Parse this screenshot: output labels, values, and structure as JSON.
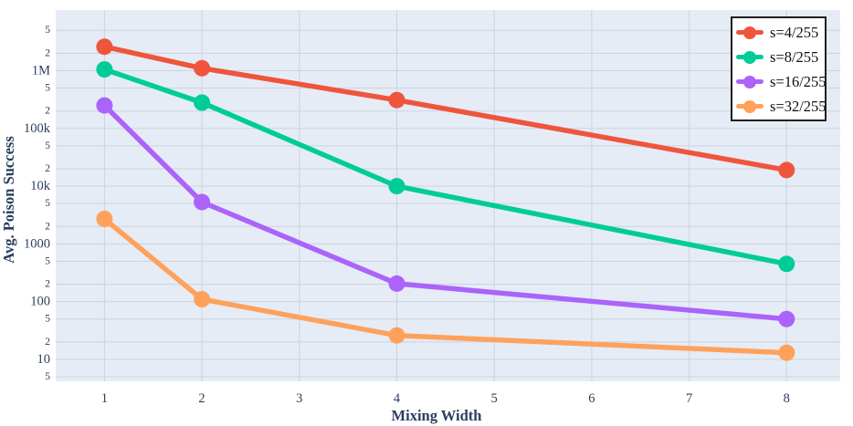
{
  "chart_data": {
    "type": "line",
    "title": "",
    "xlabel": "Mixing Width",
    "ylabel": "Avg. Poison Success",
    "x": [
      1,
      2,
      4,
      8
    ],
    "series": [
      {
        "name": "s=4/255",
        "color": "#EF553B",
        "values": [
          2600000,
          1100000,
          310000,
          19000
        ]
      },
      {
        "name": "s=8/255",
        "color": "#00CC96",
        "values": [
          1050000,
          280000,
          10000,
          450
        ]
      },
      {
        "name": "s=16/255",
        "color": "#AB63FA",
        "values": [
          250000,
          5300,
          205,
          50
        ]
      },
      {
        "name": "s=32/255",
        "color": "#FFA15A",
        "values": [
          2700,
          110,
          26,
          13
        ]
      }
    ],
    "xaxis": {
      "scale": "linear",
      "ticks": [
        1,
        2,
        3,
        4,
        5,
        6,
        7,
        8
      ],
      "range": [
        0.5,
        8.55
      ],
      "grid": true
    },
    "yaxis": {
      "scale": "log",
      "range_log10": [
        0.62,
        7.05
      ],
      "grid": true,
      "ticks": [
        {
          "v": 5000000,
          "label": "5",
          "minor": true
        },
        {
          "v": 2000000,
          "label": "2",
          "minor": true
        },
        {
          "v": 1000000,
          "label": "1M",
          "minor": false
        },
        {
          "v": 500000,
          "label": "5",
          "minor": true
        },
        {
          "v": 200000,
          "label": "2",
          "minor": true
        },
        {
          "v": 100000,
          "label": "100k",
          "minor": false
        },
        {
          "v": 50000,
          "label": "5",
          "minor": true
        },
        {
          "v": 20000,
          "label": "2",
          "minor": true
        },
        {
          "v": 10000,
          "label": "10k",
          "minor": false
        },
        {
          "v": 5000,
          "label": "5",
          "minor": true
        },
        {
          "v": 2000,
          "label": "2",
          "minor": true
        },
        {
          "v": 1000,
          "label": "1000",
          "minor": false
        },
        {
          "v": 500,
          "label": "5",
          "minor": true
        },
        {
          "v": 200,
          "label": "2",
          "minor": true
        },
        {
          "v": 100,
          "label": "100",
          "minor": false
        },
        {
          "v": 50,
          "label": "5",
          "minor": true
        },
        {
          "v": 20,
          "label": "2",
          "minor": true
        },
        {
          "v": 10,
          "label": "10",
          "minor": false
        },
        {
          "v": 5,
          "label": "5",
          "minor": true
        }
      ]
    },
    "legend": {
      "position": "top-right",
      "entries": [
        "s=4/255",
        "s=8/255",
        "s=16/255",
        "s=32/255"
      ]
    },
    "style": {
      "page_bg": "#FFFFFF",
      "plot_bg": "#E5ECF6",
      "grid_color": "#CBD3DE",
      "text_color": "#2A3F5F",
      "legend_text_color": "#101010",
      "legend_border_color": "#1F1F1F"
    }
  }
}
